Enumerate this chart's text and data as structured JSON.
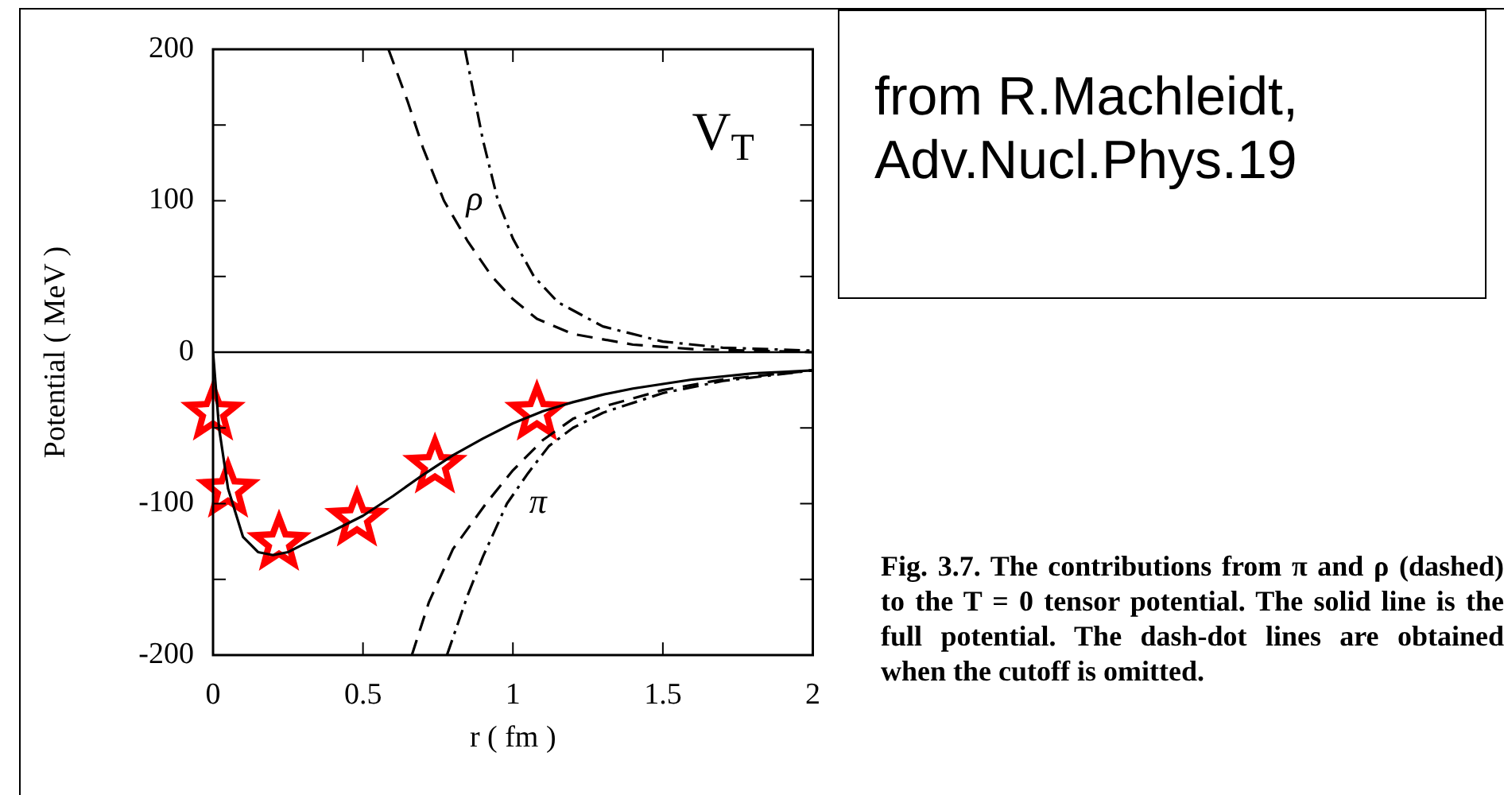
{
  "chart_data": {
    "type": "line",
    "xlabel": "r ( fm )",
    "ylabel": "Potential ( MeV )",
    "xlim": [
      0,
      2
    ],
    "xticks": [
      0,
      0.5,
      1,
      1.5,
      2
    ],
    "ylim": [
      -200,
      200
    ],
    "yticks": [
      -200,
      {
        "value": -150,
        "label": null
      },
      -100,
      {
        "value": -50,
        "label": null
      },
      0,
      {
        "value": 50,
        "label": null
      },
      100,
      {
        "value": 150,
        "label": null
      },
      200
    ],
    "grid": false,
    "legend": false,
    "ref_lines": [
      {
        "axis": "y",
        "value": 0,
        "color": "#000000",
        "line_style": "solid"
      }
    ],
    "series": [
      {
        "color": "#000000",
        "line_style": "solid",
        "marker": "none",
        "x": [
          0,
          0.02,
          0.05,
          0.1,
          0.15,
          0.2,
          0.25,
          0.3,
          0.4,
          0.5,
          0.6,
          0.7,
          0.8,
          0.9,
          1.0,
          1.1,
          1.2,
          1.3,
          1.4,
          1.5,
          1.6,
          1.7,
          1.8,
          1.9,
          2.0
        ],
        "values": [
          0,
          -50,
          -90,
          -122,
          -132,
          -134,
          -132,
          -127,
          -118,
          -108,
          -95,
          -81,
          -68,
          -57,
          -47,
          -39,
          -33,
          -28,
          -24,
          -21,
          -18,
          -16,
          -14,
          -13,
          -12
        ]
      },
      {
        "name": "ρ",
        "color": "#000000",
        "line_style": "dashed",
        "marker": "none",
        "x": [
          0.585,
          0.65,
          0.7,
          0.77,
          0.85,
          0.93,
          1.0,
          1.08,
          1.2,
          1.4,
          1.6,
          1.8,
          2.0
        ],
        "values": [
          200,
          165,
          135,
          100,
          73,
          50,
          35,
          22,
          12,
          5,
          2,
          1,
          0
        ]
      },
      {
        "color": "#000000",
        "line_style": "dashdot",
        "marker": "none",
        "x": [
          0.84,
          0.9,
          0.95,
          1.0,
          1.07,
          1.15,
          1.3,
          1.5,
          1.7,
          2.0
        ],
        "values": [
          200,
          140,
          100,
          75,
          50,
          33,
          17,
          7,
          3,
          1
        ]
      },
      {
        "color": "#000000",
        "line_style": "dashed",
        "marker": "none",
        "x": [
          0.663,
          0.72,
          0.8,
          0.91,
          1.0,
          1.1,
          1.2,
          1.3,
          1.5,
          1.7,
          2.0
        ],
        "values": [
          -200,
          -165,
          -130,
          -100,
          -78,
          -58,
          -44,
          -36,
          -25,
          -18,
          -12
        ]
      },
      {
        "name": "π",
        "color": "#000000",
        "line_style": "dashdot",
        "marker": "none",
        "x": [
          0.78,
          0.85,
          0.9,
          0.98,
          1.05,
          1.12,
          1.2,
          1.3,
          1.5,
          1.7,
          2.0
        ],
        "values": [
          -200,
          -160,
          -135,
          -100,
          -80,
          -62,
          -50,
          -40,
          -27,
          -19,
          -12
        ]
      },
      {
        "type": "scatter",
        "color": "#ff0000",
        "marker": "star",
        "x": [
          0,
          0.05,
          0.22,
          0.48,
          0.74,
          1.08
        ],
        "values": [
          -40,
          -91,
          -126,
          -110,
          -75,
          -40
        ]
      }
    ],
    "annotations": [
      "V$_{T}$",
      "from R.Machleidt, Adv.Nucl.Phys.19",
      "Fig. 3.7. The contributions from π and ρ (dashed) to the T = 0 tensor potential. The solid line is the full potential. The dash-dot lines are obtained when the cutoff is omitted."
    ]
  }
}
